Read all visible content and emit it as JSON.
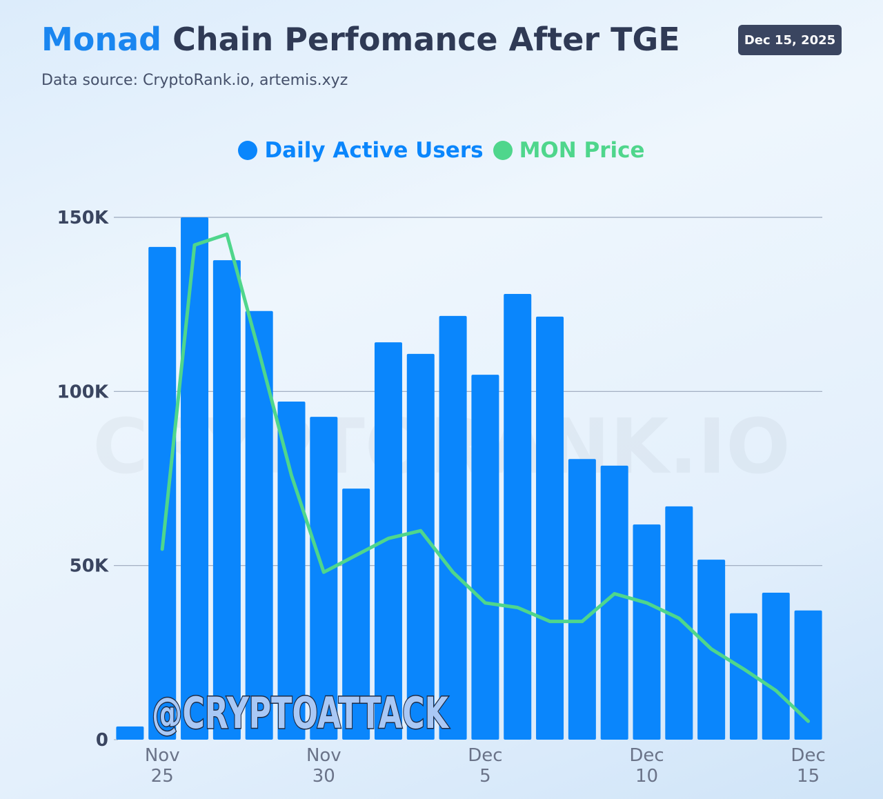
{
  "chart_data": {
    "type": "bar",
    "title_parts": [
      "Monad",
      "Chain Perfomance After TGE"
    ],
    "subtitle": "Data source: CryptoRank.io, artemis.xyz",
    "date_badge": "Dec 15, 2025",
    "annotations": [
      "CRYPTORANK.IO",
      "@CRYPTOATTACK"
    ],
    "categories": [
      null,
      "Nov 25",
      null,
      null,
      null,
      null,
      "Nov 30",
      null,
      null,
      null,
      null,
      "Dec 5",
      null,
      null,
      null,
      null,
      "Dec 10",
      null,
      null,
      null,
      null,
      "Dec 15"
    ],
    "series": [
      {
        "name": "Daily Active Users",
        "type": "bar",
        "color": "#0a86fc",
        "values": [
          3800,
          141500,
          150000,
          137700,
          123100,
          97100,
          92700,
          72100,
          114100,
          110800,
          121700,
          104800,
          128000,
          121500,
          80600,
          78700,
          61800,
          67000,
          51700,
          36300,
          42200,
          37100
        ]
      },
      {
        "name": "MON Price",
        "type": "line",
        "color": "#4fd68c",
        "axis": "y2",
        "values": [
          null,
          0.0284,
          0.0482,
          0.0489,
          0.0412,
          0.0332,
          0.0269,
          0.028,
          0.0291,
          0.0296,
          0.0269,
          0.0249,
          0.0246,
          0.0237,
          0.0237,
          0.0255,
          0.0249,
          0.0239,
          0.0219,
          0.0206,
          0.0192,
          0.0172
        ]
      }
    ],
    "ylim": [
      0,
      150000
    ],
    "yticks": [
      0,
      {
        "value": 50000,
        "label": "50K"
      },
      {
        "value": 100000,
        "label": "100K"
      },
      {
        "value": 150000,
        "label": "150K"
      }
    ],
    "y2lim": [
      0.016,
      0.05
    ],
    "grid": true,
    "legend": "top"
  }
}
